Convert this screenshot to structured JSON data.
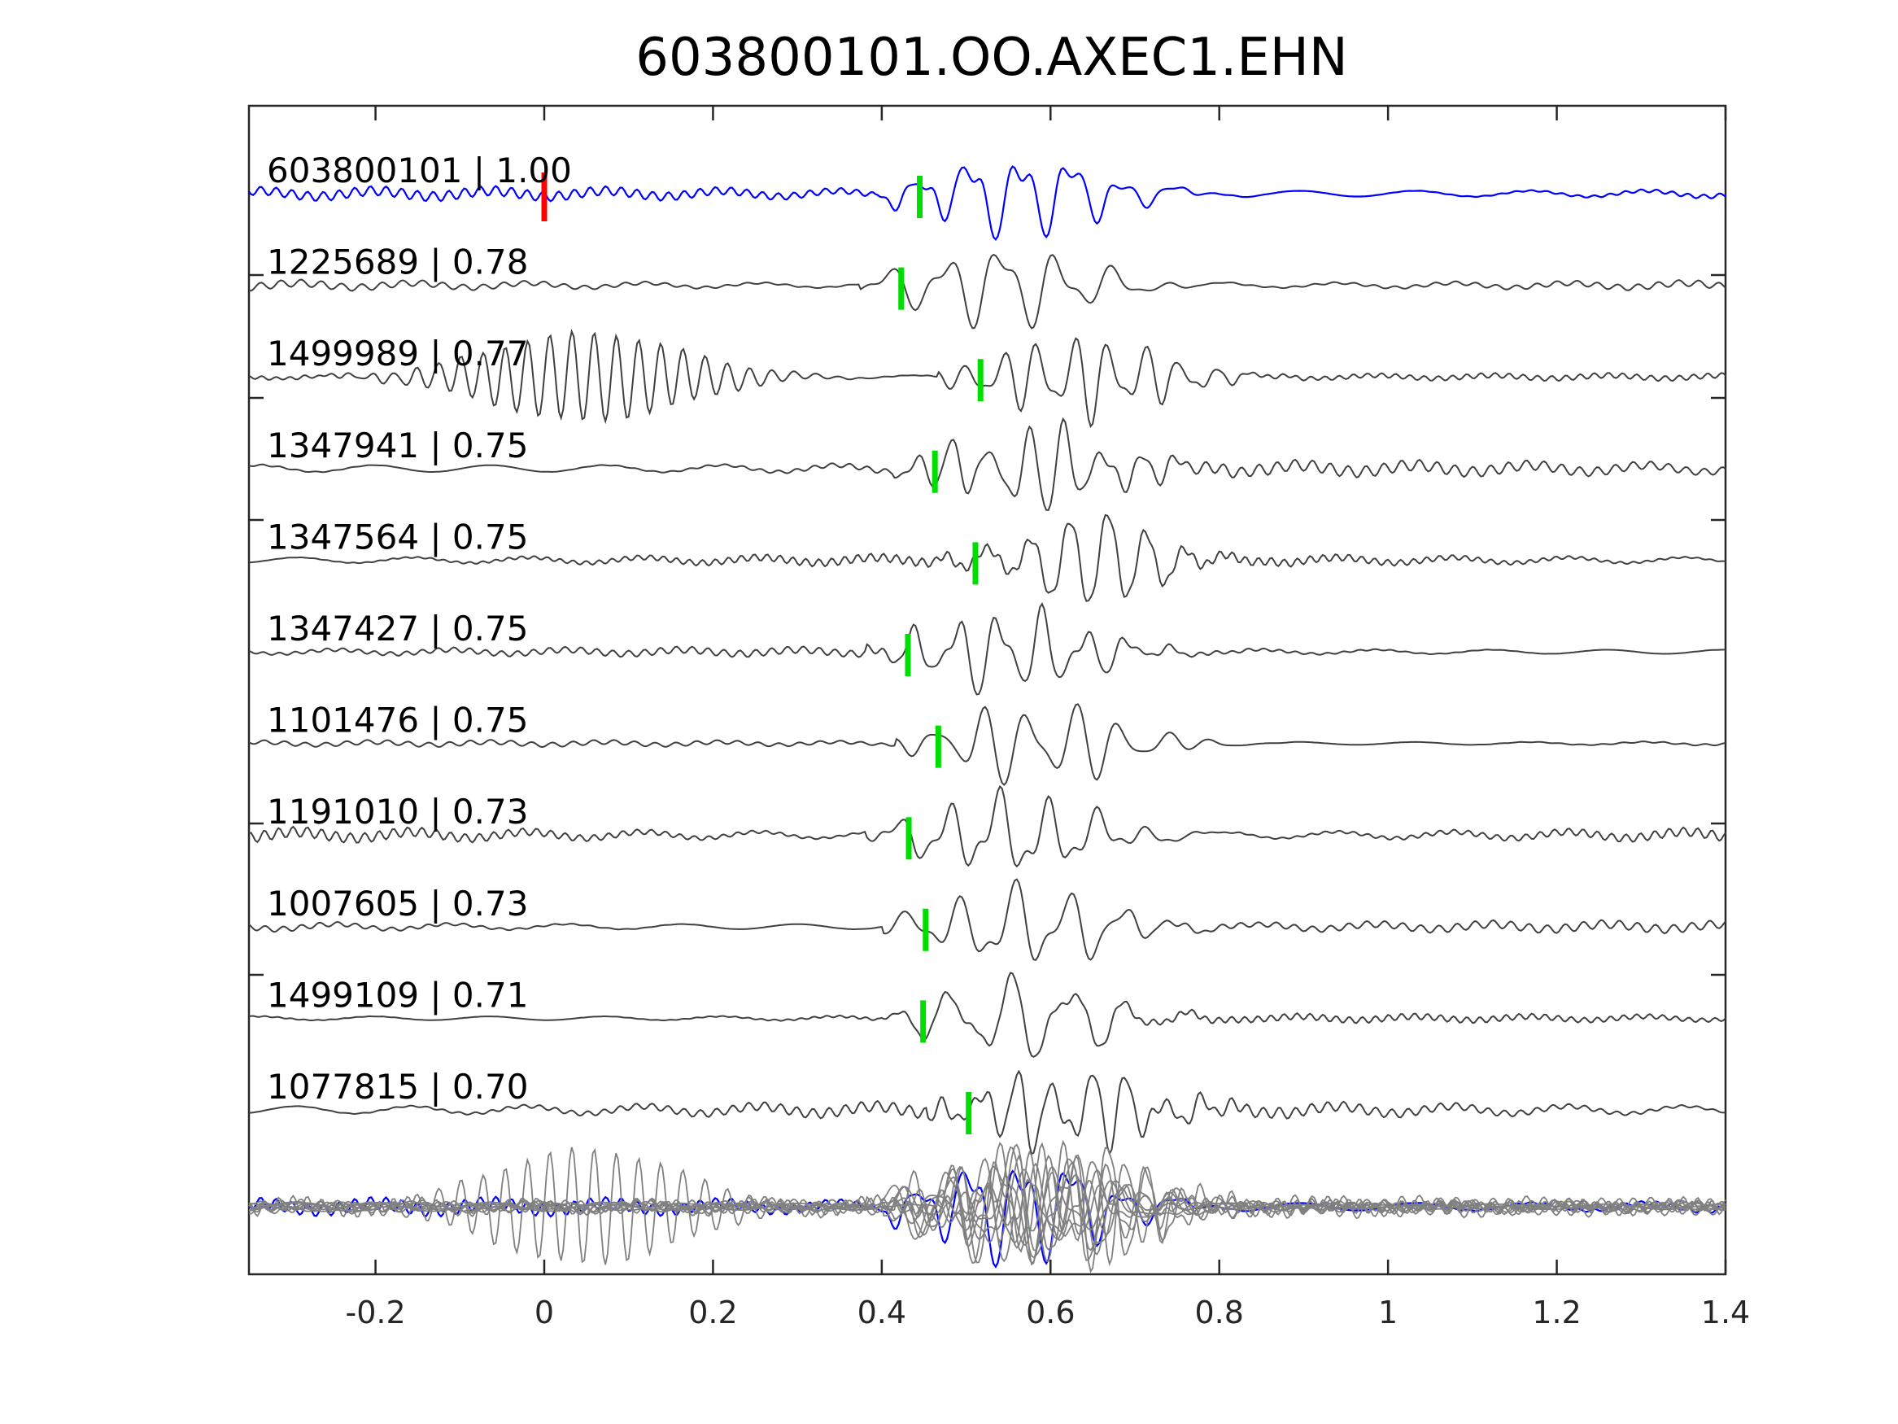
{
  "colors": {
    "background": "#ffffff",
    "axes_frame": "#262626",
    "reference_trace": "#0000ff",
    "match_trace": "#404040",
    "stack_trace": "#808080",
    "pick_origin": "#ff0000",
    "pick_arrival": "#00dd00"
  },
  "chart_data": {
    "type": "line",
    "title": "603800101.OO.AXEC1.EHN",
    "xlabel": "",
    "ylabel": "",
    "xlim": [
      -0.35,
      1.4
    ],
    "xticks": [
      -0.2,
      0,
      0.2,
      0.4,
      0.6,
      0.8,
      1,
      1.2,
      1.4
    ],
    "xtick_labels": [
      "-0.2",
      "0",
      "0.2",
      "0.4",
      "0.6",
      "0.8",
      "1",
      "1.2",
      "1.4"
    ],
    "grid": false,
    "legend": "none",
    "origin_pick": 0,
    "traces": [
      {
        "label": "603800101 | 1.00",
        "id": "603800101",
        "cc": 1.0,
        "pick": 0.445,
        "reference": true
      },
      {
        "label": "1225689 | 0.78",
        "id": "1225689",
        "cc": 0.78,
        "pick": 0.423
      },
      {
        "label": "1499989 | 0.77",
        "id": "1499989",
        "cc": 0.77,
        "pick": 0.517
      },
      {
        "label": "1347941 | 0.75",
        "id": "1347941",
        "cc": 0.75,
        "pick": 0.463
      },
      {
        "label": "1347564 | 0.75",
        "id": "1347564",
        "cc": 0.75,
        "pick": 0.511
      },
      {
        "label": "1347427 | 0.75",
        "id": "1347427",
        "cc": 0.75,
        "pick": 0.431
      },
      {
        "label": "1101476 | 0.75",
        "id": "1101476",
        "cc": 0.75,
        "pick": 0.467
      },
      {
        "label": "1191010 | 0.73",
        "id": "1191010",
        "cc": 0.73,
        "pick": 0.432
      },
      {
        "label": "1007605 | 0.73",
        "id": "1007605",
        "cc": 0.73,
        "pick": 0.452
      },
      {
        "label": "1499109 | 0.71",
        "id": "1499109",
        "cc": 0.71,
        "pick": 0.449
      },
      {
        "label": "1077815 | 0.70",
        "id": "1077815",
        "cc": 0.7,
        "pick": 0.503
      }
    ]
  }
}
